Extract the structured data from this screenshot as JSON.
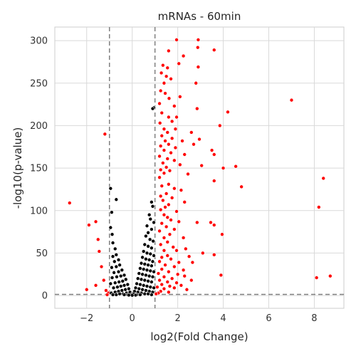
{
  "chart_data": {
    "type": "scatter",
    "title": "mRNAs - 60min",
    "xlabel": "log2(Fold Change)",
    "ylabel": "-log10(p-value)",
    "xlim": [
      -3.4,
      9.3
    ],
    "ylim": [
      -15,
      316
    ],
    "x_ticks": [
      -2,
      0,
      2,
      4,
      6,
      8
    ],
    "y_ticks": [
      0,
      50,
      100,
      150,
      200,
      250,
      300
    ],
    "grid": true,
    "thresholds": {
      "x": [
        -1,
        1
      ],
      "y": 1.3
    },
    "colors": {
      "significant": "#ff0000",
      "not_significant": "#000000",
      "background": "#ffffff",
      "grid": "#d9d9d9",
      "threshold_line": "#7f7f7f"
    },
    "series": [
      {
        "group": "significant",
        "points": [
          [
            1.95,
            301
          ],
          [
            2.9,
            301
          ],
          [
            2.88,
            292
          ],
          [
            1.6,
            288
          ],
          [
            3.6,
            289
          ],
          [
            2.25,
            282
          ],
          [
            2.05,
            273
          ],
          [
            1.35,
            271
          ],
          [
            2.9,
            269
          ],
          [
            1.55,
            268
          ],
          [
            1.28,
            262
          ],
          [
            1.5,
            258
          ],
          [
            1.7,
            255
          ],
          [
            1.4,
            250
          ],
          [
            2.8,
            250
          ],
          [
            1.25,
            241
          ],
          [
            1.45,
            238
          ],
          [
            1.62,
            232
          ],
          [
            2.1,
            234
          ],
          [
            1.2,
            226
          ],
          [
            1.85,
            223
          ],
          [
            7.0,
            230
          ],
          [
            2.85,
            220
          ],
          [
            4.2,
            216
          ],
          [
            1.3,
            215
          ],
          [
            1.6,
            210
          ],
          [
            1.95,
            210
          ],
          [
            1.75,
            205
          ],
          [
            1.22,
            203
          ],
          [
            3.85,
            200
          ],
          [
            1.4,
            196
          ],
          [
            1.9,
            196
          ],
          [
            1.55,
            192
          ],
          [
            2.6,
            192
          ],
          [
            -1.2,
            190
          ],
          [
            1.3,
            188
          ],
          [
            1.75,
            185
          ],
          [
            2.95,
            184
          ],
          [
            1.45,
            182
          ],
          [
            2.2,
            182
          ],
          [
            1.6,
            178
          ],
          [
            2.7,
            178
          ],
          [
            1.25,
            176
          ],
          [
            1.9,
            174
          ],
          [
            1.4,
            171
          ],
          [
            3.5,
            171
          ],
          [
            1.7,
            168
          ],
          [
            2.3,
            166
          ],
          [
            3.6,
            166
          ],
          [
            1.2,
            164
          ],
          [
            1.55,
            161
          ],
          [
            1.85,
            159
          ],
          [
            1.35,
            156
          ],
          [
            2.1,
            154
          ],
          [
            3.05,
            153
          ],
          [
            1.5,
            151
          ],
          [
            4.55,
            152
          ],
          [
            4.0,
            150
          ],
          [
            1.25,
            148
          ],
          [
            1.65,
            147
          ],
          [
            1.4,
            144
          ],
          [
            2.45,
            143
          ],
          [
            1.2,
            139
          ],
          [
            8.4,
            138
          ],
          [
            3.6,
            135
          ],
          [
            1.6,
            131
          ],
          [
            1.3,
            129
          ],
          [
            4.8,
            128
          ],
          [
            1.85,
            126
          ],
          [
            2.15,
            124
          ],
          [
            1.5,
            120
          ],
          [
            1.25,
            117
          ],
          [
            1.75,
            115
          ],
          [
            2.3,
            110
          ],
          [
            1.35,
            112
          ],
          [
            -2.75,
            109
          ],
          [
            1.6,
            107
          ],
          [
            1.45,
            104
          ],
          [
            8.2,
            104
          ],
          [
            1.25,
            101
          ],
          [
            1.95,
            99
          ],
          [
            1.4,
            95
          ],
          [
            1.55,
            92
          ],
          [
            1.7,
            89
          ],
          [
            2.05,
            87
          ],
          [
            2.85,
            86
          ],
          [
            3.45,
            86
          ],
          [
            -1.6,
            87
          ],
          [
            1.3,
            85
          ],
          [
            3.6,
            83
          ],
          [
            -1.9,
            83
          ],
          [
            1.5,
            81
          ],
          [
            1.85,
            78
          ],
          [
            1.2,
            76
          ],
          [
            1.65,
            72
          ],
          [
            3.95,
            72
          ],
          [
            1.4,
            68
          ],
          [
            2.25,
            68
          ],
          [
            -1.5,
            66
          ],
          [
            1.55,
            63
          ],
          [
            1.25,
            60
          ],
          [
            1.8,
            57
          ],
          [
            2.35,
            55
          ],
          [
            1.95,
            53
          ],
          [
            1.4,
            53
          ],
          [
            3.1,
            50
          ],
          [
            -1.45,
            52
          ],
          [
            3.6,
            48
          ],
          [
            1.55,
            47
          ],
          [
            1.3,
            45
          ],
          [
            2.5,
            46
          ],
          [
            1.7,
            43
          ],
          [
            1.2,
            40
          ],
          [
            2.05,
            39
          ],
          [
            2.65,
            39
          ],
          [
            1.45,
            36
          ],
          [
            1.85,
            34
          ],
          [
            -1.35,
            34
          ],
          [
            1.3,
            31
          ],
          [
            2.25,
            30
          ],
          [
            1.6,
            28
          ],
          [
            1.15,
            26
          ],
          [
            2.0,
            25
          ],
          [
            3.9,
            24
          ],
          [
            2.3,
            23
          ],
          [
            8.7,
            23
          ],
          [
            1.4,
            22
          ],
          [
            8.1,
            21
          ],
          [
            1.75,
            20
          ],
          [
            1.2,
            18
          ],
          [
            2.6,
            18
          ],
          [
            1.55,
            16
          ],
          [
            1.95,
            15
          ],
          [
            -1.25,
            18
          ],
          [
            1.3,
            13
          ],
          [
            2.15,
            12
          ],
          [
            1.65,
            11
          ],
          [
            -1.6,
            12
          ],
          [
            1.1,
            10
          ],
          [
            1.85,
            9
          ],
          [
            1.4,
            8
          ],
          [
            2.4,
            7
          ],
          [
            -2.0,
            7
          ],
          [
            -1.15,
            6
          ],
          [
            1.25,
            5
          ],
          [
            1.6,
            4
          ],
          [
            1.15,
            3
          ],
          [
            1.05,
            2
          ],
          [
            -1.05,
            3
          ],
          [
            -1.1,
            1
          ]
        ]
      },
      {
        "group": "not_significant",
        "points": [
          [
            0.95,
            221
          ],
          [
            0.9,
            220
          ],
          [
            -0.95,
            126
          ],
          [
            -0.7,
            113
          ],
          [
            0.85,
            110
          ],
          [
            0.9,
            105
          ],
          [
            -0.9,
            98
          ],
          [
            0.75,
            95
          ],
          [
            0.8,
            90
          ],
          [
            0.95,
            86
          ],
          [
            -0.95,
            80
          ],
          [
            0.65,
            82
          ],
          [
            0.85,
            78
          ],
          [
            -0.88,
            72
          ],
          [
            0.7,
            74
          ],
          [
            0.6,
            70
          ],
          [
            0.78,
            66
          ],
          [
            0.92,
            64
          ],
          [
            -0.85,
            62
          ],
          [
            0.55,
            60
          ],
          [
            0.7,
            58
          ],
          [
            0.85,
            56
          ],
          [
            -0.75,
            55
          ],
          [
            0.5,
            52
          ],
          [
            0.65,
            50
          ],
          [
            0.8,
            49
          ],
          [
            0.95,
            47
          ],
          [
            -0.7,
            48
          ],
          [
            -0.85,
            46
          ],
          [
            0.45,
            45
          ],
          [
            0.6,
            43
          ],
          [
            0.75,
            42
          ],
          [
            0.9,
            40
          ],
          [
            -0.6,
            42
          ],
          [
            -0.78,
            40
          ],
          [
            0.4,
            38
          ],
          [
            0.55,
            37
          ],
          [
            0.7,
            36
          ],
          [
            0.85,
            35
          ],
          [
            -0.55,
            36
          ],
          [
            -0.7,
            34
          ],
          [
            -0.9,
            33
          ],
          [
            0.35,
            32
          ],
          [
            0.5,
            31
          ],
          [
            0.65,
            30
          ],
          [
            0.8,
            29
          ],
          [
            0.95,
            28
          ],
          [
            -0.45,
            30
          ],
          [
            -0.6,
            28
          ],
          [
            -0.8,
            27
          ],
          [
            0.3,
            26
          ],
          [
            0.45,
            25
          ],
          [
            0.6,
            24
          ],
          [
            0.75,
            23
          ],
          [
            0.9,
            22
          ],
          [
            -0.35,
            24
          ],
          [
            -0.5,
            23
          ],
          [
            -0.68,
            22
          ],
          [
            -0.88,
            21
          ],
          [
            0.25,
            20
          ],
          [
            0.4,
            19
          ],
          [
            0.55,
            18
          ],
          [
            0.7,
            17
          ],
          [
            0.85,
            16
          ],
          [
            -0.28,
            19
          ],
          [
            -0.42,
            17
          ],
          [
            -0.58,
            16
          ],
          [
            -0.75,
            15
          ],
          [
            -0.95,
            14
          ],
          [
            0.2,
            14
          ],
          [
            0.35,
            13
          ],
          [
            0.5,
            12
          ],
          [
            0.65,
            11
          ],
          [
            0.8,
            10
          ],
          [
            0.95,
            9
          ],
          [
            -0.2,
            13
          ],
          [
            -0.35,
            12
          ],
          [
            -0.5,
            11
          ],
          [
            -0.65,
            10
          ],
          [
            -0.82,
            9
          ],
          [
            0.15,
            9
          ],
          [
            0.3,
            8
          ],
          [
            0.45,
            7
          ],
          [
            0.6,
            6
          ],
          [
            0.75,
            5
          ],
          [
            0.9,
            4
          ],
          [
            -0.15,
            8
          ],
          [
            -0.3,
            7
          ],
          [
            -0.45,
            6
          ],
          [
            -0.6,
            5
          ],
          [
            -0.75,
            4
          ],
          [
            -0.92,
            3
          ],
          [
            0.1,
            5
          ],
          [
            0.25,
            4
          ],
          [
            0.4,
            3
          ],
          [
            0.55,
            2
          ],
          [
            0.7,
            2
          ],
          [
            0.85,
            1
          ],
          [
            -0.1,
            4
          ],
          [
            -0.25,
            3
          ],
          [
            -0.4,
            2
          ],
          [
            -0.55,
            2
          ],
          [
            -0.7,
            1
          ],
          [
            -0.85,
            1
          ],
          [
            0.05,
            2
          ],
          [
            0.2,
            1
          ],
          [
            0.35,
            1
          ],
          [
            -0.05,
            1
          ],
          [
            -0.2,
            1
          ],
          [
            -0.35,
            1
          ],
          [
            0.15,
            0.5
          ],
          [
            -0.15,
            0.5
          ],
          [
            0.0,
            0.3
          ]
        ]
      }
    ]
  }
}
